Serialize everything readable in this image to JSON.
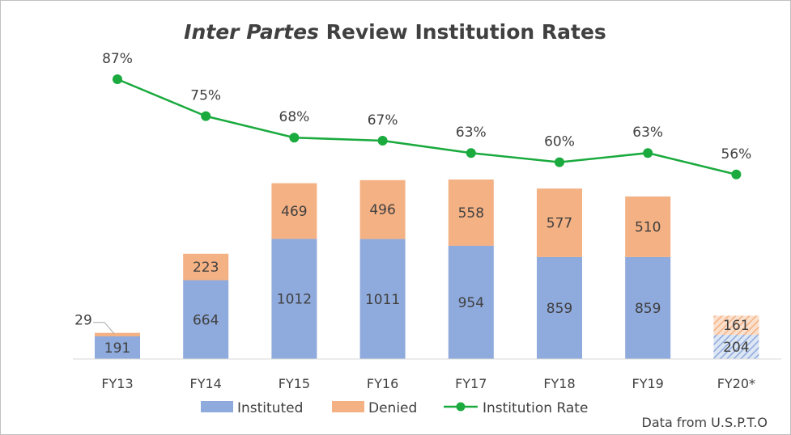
{
  "chart_data": {
    "type": "bar",
    "title_italic": "Inter Partes",
    "title_rest": " Review Institution Rates",
    "categories": [
      "FY13",
      "FY14",
      "FY15",
      "FY16",
      "FY17",
      "FY18",
      "FY19",
      "FY20*"
    ],
    "series": [
      {
        "name": "Instituted",
        "type": "bar",
        "stack": "petitions",
        "color": "#8faadc",
        "values": [
          191,
          664,
          1012,
          1011,
          954,
          859,
          859,
          204
        ]
      },
      {
        "name": "Denied",
        "type": "bar",
        "stack": "petitions",
        "color": "#f4b183",
        "values": [
          29,
          223,
          469,
          496,
          558,
          577,
          510,
          161
        ]
      },
      {
        "name": "Institution Rate",
        "type": "line",
        "color": "#1aaa3e",
        "values": [
          87,
          75,
          68,
          67,
          63,
          60,
          63,
          56
        ],
        "labels": [
          "87%",
          "75%",
          "68%",
          "67%",
          "63%",
          "60%",
          "63%",
          "56%"
        ]
      }
    ],
    "partial_year_category": "FY20*",
    "legend_position": "bottom",
    "grid": false,
    "source_note": "Data from U.S.P.T.O"
  }
}
